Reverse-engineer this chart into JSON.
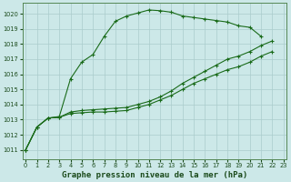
{
  "xlabel": "Graphe pression niveau de la mer (hPa)",
  "bg_color": "#cce8e8",
  "grid_color": "#aacccc",
  "line_color": "#1a6b1a",
  "x_ticks": [
    0,
    1,
    2,
    3,
    4,
    5,
    6,
    7,
    8,
    9,
    10,
    11,
    12,
    13,
    14,
    15,
    16,
    17,
    18,
    19,
    20,
    21,
    22,
    23
  ],
  "y_ticks": [
    1011,
    1012,
    1013,
    1014,
    1015,
    1016,
    1017,
    1018,
    1019,
    1020
  ],
  "ylim": [
    1010.4,
    1020.7
  ],
  "xlim": [
    -0.3,
    23.3
  ],
  "s1": [
    1011.0,
    1012.5,
    1013.1,
    1013.2,
    1015.7,
    1016.8,
    1017.3,
    1018.5,
    1019.5,
    1019.85,
    1020.05,
    1020.25,
    1020.2,
    1020.1,
    1019.85,
    1019.75,
    1019.65,
    1019.55,
    1019.45,
    1019.2,
    1019.1,
    1018.5,
    null,
    null
  ],
  "s2": [
    1011.0,
    1012.5,
    1013.1,
    1013.15,
    1013.5,
    1013.6,
    1013.65,
    1013.7,
    1013.75,
    1013.8,
    1014.0,
    1014.2,
    1014.5,
    1014.9,
    1015.4,
    1015.8,
    1016.2,
    1016.6,
    1017.0,
    1017.2,
    1017.5,
    1017.9,
    1018.2,
    null
  ],
  "s3": [
    1011.0,
    1012.5,
    1013.1,
    1013.15,
    1013.4,
    1013.45,
    1013.5,
    1013.5,
    1013.55,
    1013.6,
    1013.8,
    1014.0,
    1014.3,
    1014.6,
    1015.0,
    1015.4,
    1015.7,
    1016.0,
    1016.3,
    1016.5,
    1016.8,
    1017.2,
    1017.5,
    null
  ],
  "xlabel_fontsize": 6.5,
  "tick_fontsize": 4.8
}
